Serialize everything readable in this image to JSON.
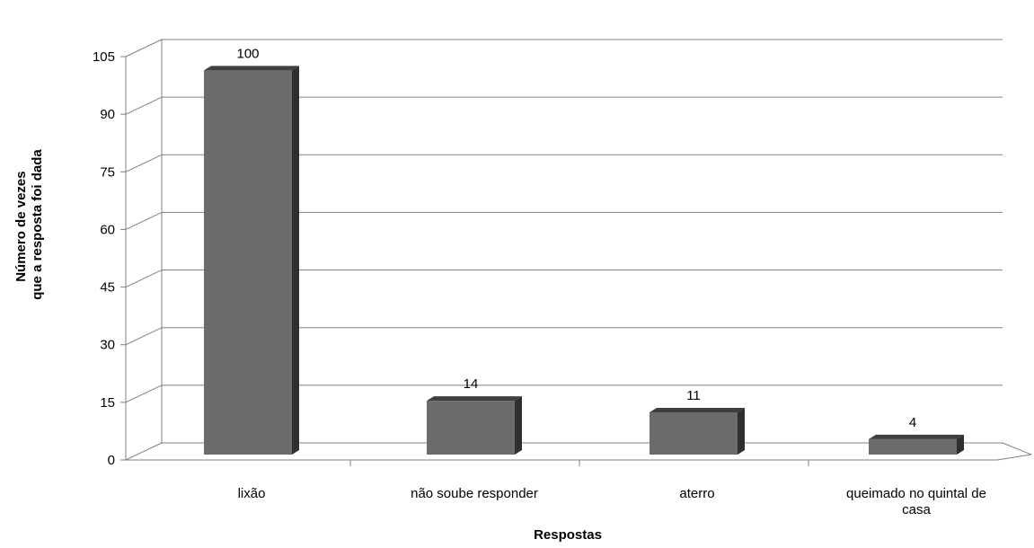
{
  "chart_data": {
    "type": "bar",
    "categories": [
      "lixão",
      "não soube responder",
      "aterro",
      "queimado no quintal de casa"
    ],
    "category_lines": [
      [
        "lixão"
      ],
      [
        "não soube responder"
      ],
      [
        "aterro"
      ],
      [
        "queimado no quintal de",
        "casa"
      ]
    ],
    "values": [
      100,
      14,
      11,
      4
    ],
    "data_labels": [
      "100",
      "14",
      "11",
      "4"
    ],
    "xlabel": "Respostas",
    "ylabel_lines": [
      "Número de vezes",
      "que a resposta foi dada"
    ],
    "ylim": [
      0,
      105
    ],
    "yticks": [
      0,
      15,
      30,
      45,
      60,
      75,
      90,
      105
    ],
    "grid": true,
    "legend": "none",
    "colors": {
      "bar_front": "#6b6b6b",
      "bar_side": "#2f2f2f",
      "bar_top": "#3f3f3f",
      "grid": "#808080"
    }
  }
}
